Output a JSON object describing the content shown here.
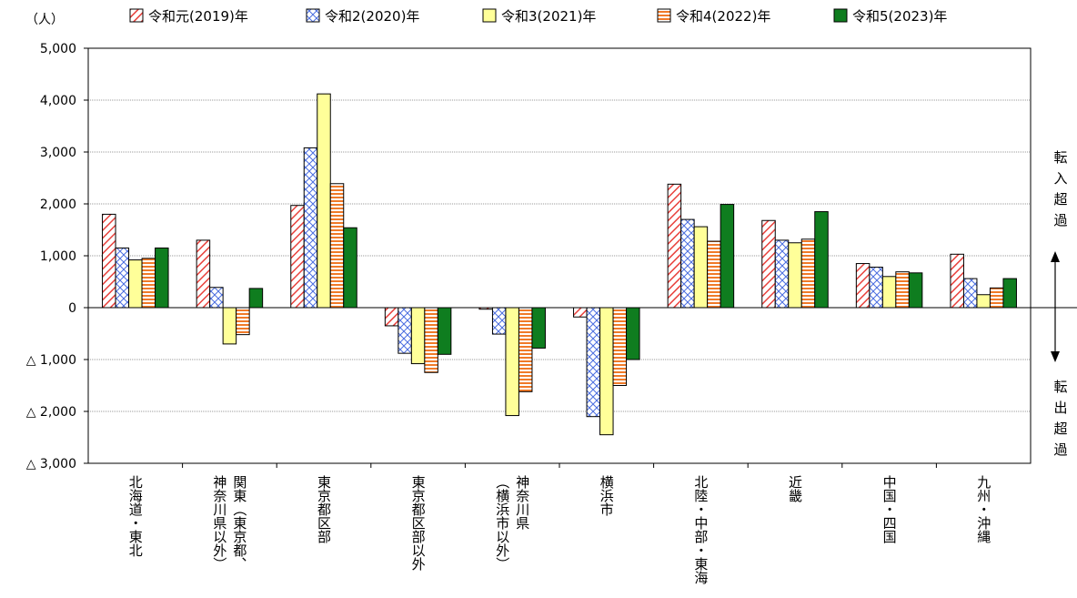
{
  "chart_data": {
    "type": "bar",
    "unit_label": "（人）",
    "ylim": [
      -3000,
      5000
    ],
    "yticks": [
      {
        "value": 5000,
        "label": "5,000"
      },
      {
        "value": 4000,
        "label": "4,000"
      },
      {
        "value": 3000,
        "label": "3,000"
      },
      {
        "value": 2000,
        "label": "2,000"
      },
      {
        "value": 1000,
        "label": "1,000"
      },
      {
        "value": 0,
        "label": "0"
      },
      {
        "value": -1000,
        "label": "△ 1,000"
      },
      {
        "value": -2000,
        "label": "△ 2,000"
      },
      {
        "value": -3000,
        "label": "△ 3,000"
      }
    ],
    "grid": true,
    "legend_position": "top",
    "categories": [
      {
        "lines": [
          "北海道・東北"
        ]
      },
      {
        "lines": [
          "関東（東京都、",
          "神奈川県以外）"
        ]
      },
      {
        "lines": [
          "東京都区部"
        ]
      },
      {
        "lines": [
          "東京都区部以外"
        ]
      },
      {
        "lines": [
          "神奈川県",
          "（横浜市以外）"
        ]
      },
      {
        "lines": [
          "横浜市"
        ]
      },
      {
        "lines": [
          "北陸・中部・東海"
        ]
      },
      {
        "lines": [
          "近畿"
        ]
      },
      {
        "lines": [
          "中国・四国"
        ]
      },
      {
        "lines": [
          "九州・沖縄"
        ]
      }
    ],
    "series": [
      {
        "name": "令和元(2019)年",
        "pattern": "diag",
        "color": "#e8413c",
        "values": [
          1800,
          1300,
          1970,
          -350,
          -30,
          -180,
          2380,
          1680,
          850,
          1030
        ]
      },
      {
        "name": "令和2(2020)年",
        "pattern": "cross",
        "color": "#3d5fd6",
        "values": [
          1150,
          390,
          3080,
          -880,
          -510,
          -2100,
          1700,
          1300,
          780,
          560
        ]
      },
      {
        "name": "令和3(2021)年",
        "pattern": "solid",
        "color": "#ffff99",
        "values": [
          920,
          -700,
          4120,
          -1080,
          -2080,
          -2450,
          1560,
          1250,
          600,
          250
        ]
      },
      {
        "name": "令和4(2022)年",
        "pattern": "hstripe",
        "color": "#f07a28",
        "values": [
          950,
          -520,
          2390,
          -1250,
          -1620,
          -1500,
          1280,
          1320,
          690,
          380
        ]
      },
      {
        "name": "令和5(2023)年",
        "pattern": "solid",
        "color": "#0f7d1f",
        "values": [
          1150,
          370,
          1540,
          -900,
          -780,
          -1000,
          1990,
          1850,
          670,
          560
        ]
      }
    ],
    "side_annotations": {
      "top": [
        "転",
        "入",
        "超",
        "過"
      ],
      "bottom": [
        "転",
        "出",
        "超",
        "過"
      ]
    }
  }
}
